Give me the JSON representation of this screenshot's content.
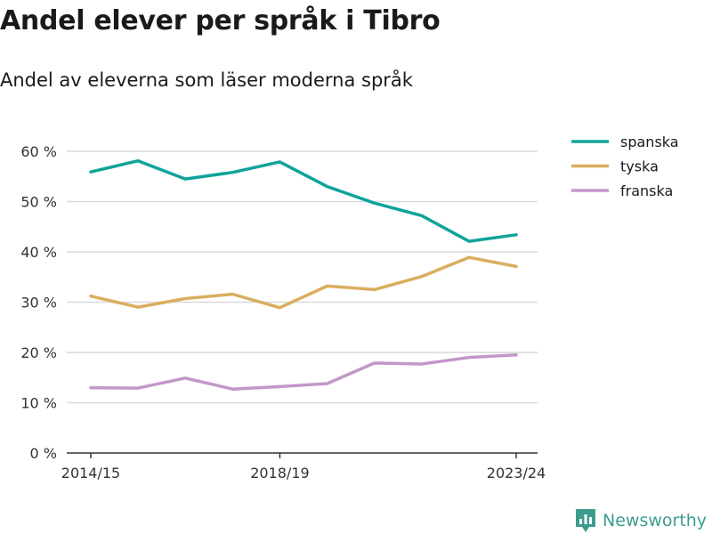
{
  "title": "Andel elever per språk i Tibro",
  "subtitle": "Andel av eleverna som läser moderna språk",
  "brand": "Newsworthy",
  "chart_data": {
    "type": "line",
    "title": "Andel elever per språk i Tibro",
    "subtitle": "Andel av eleverna som läser moderna språk",
    "x": [
      "2014/15",
      "2015/16",
      "2016/17",
      "2017/18",
      "2018/19",
      "2019/20",
      "2020/21",
      "2021/22",
      "2022/23",
      "2023/24"
    ],
    "x_tick_labels": [
      "2014/15",
      "2018/19",
      "2023/24"
    ],
    "ylim": [
      0,
      60
    ],
    "y_ticks": [
      0,
      10,
      20,
      30,
      40,
      50,
      60
    ],
    "y_tick_labels": [
      "0 %",
      "10 %",
      "20 %",
      "30 %",
      "40 %",
      "50 %",
      "60 %"
    ],
    "grid": true,
    "legend_position": "top-right",
    "series": [
      {
        "name": "spanska",
        "color": "#0fa39a",
        "values": [
          55.9,
          58.1,
          54.5,
          55.8,
          57.9,
          53.0,
          49.7,
          47.2,
          42.1,
          43.4
        ]
      },
      {
        "name": "tyska",
        "color": "#d9ae5f",
        "values": [
          31.2,
          29.0,
          30.7,
          31.6,
          28.9,
          33.2,
          32.5,
          35.1,
          38.9,
          37.1
        ]
      },
      {
        "name": "franska",
        "color": "#c397c9",
        "values": [
          13.0,
          12.9,
          14.9,
          12.7,
          13.2,
          13.8,
          17.9,
          17.7,
          19.0,
          19.5
        ]
      }
    ]
  }
}
